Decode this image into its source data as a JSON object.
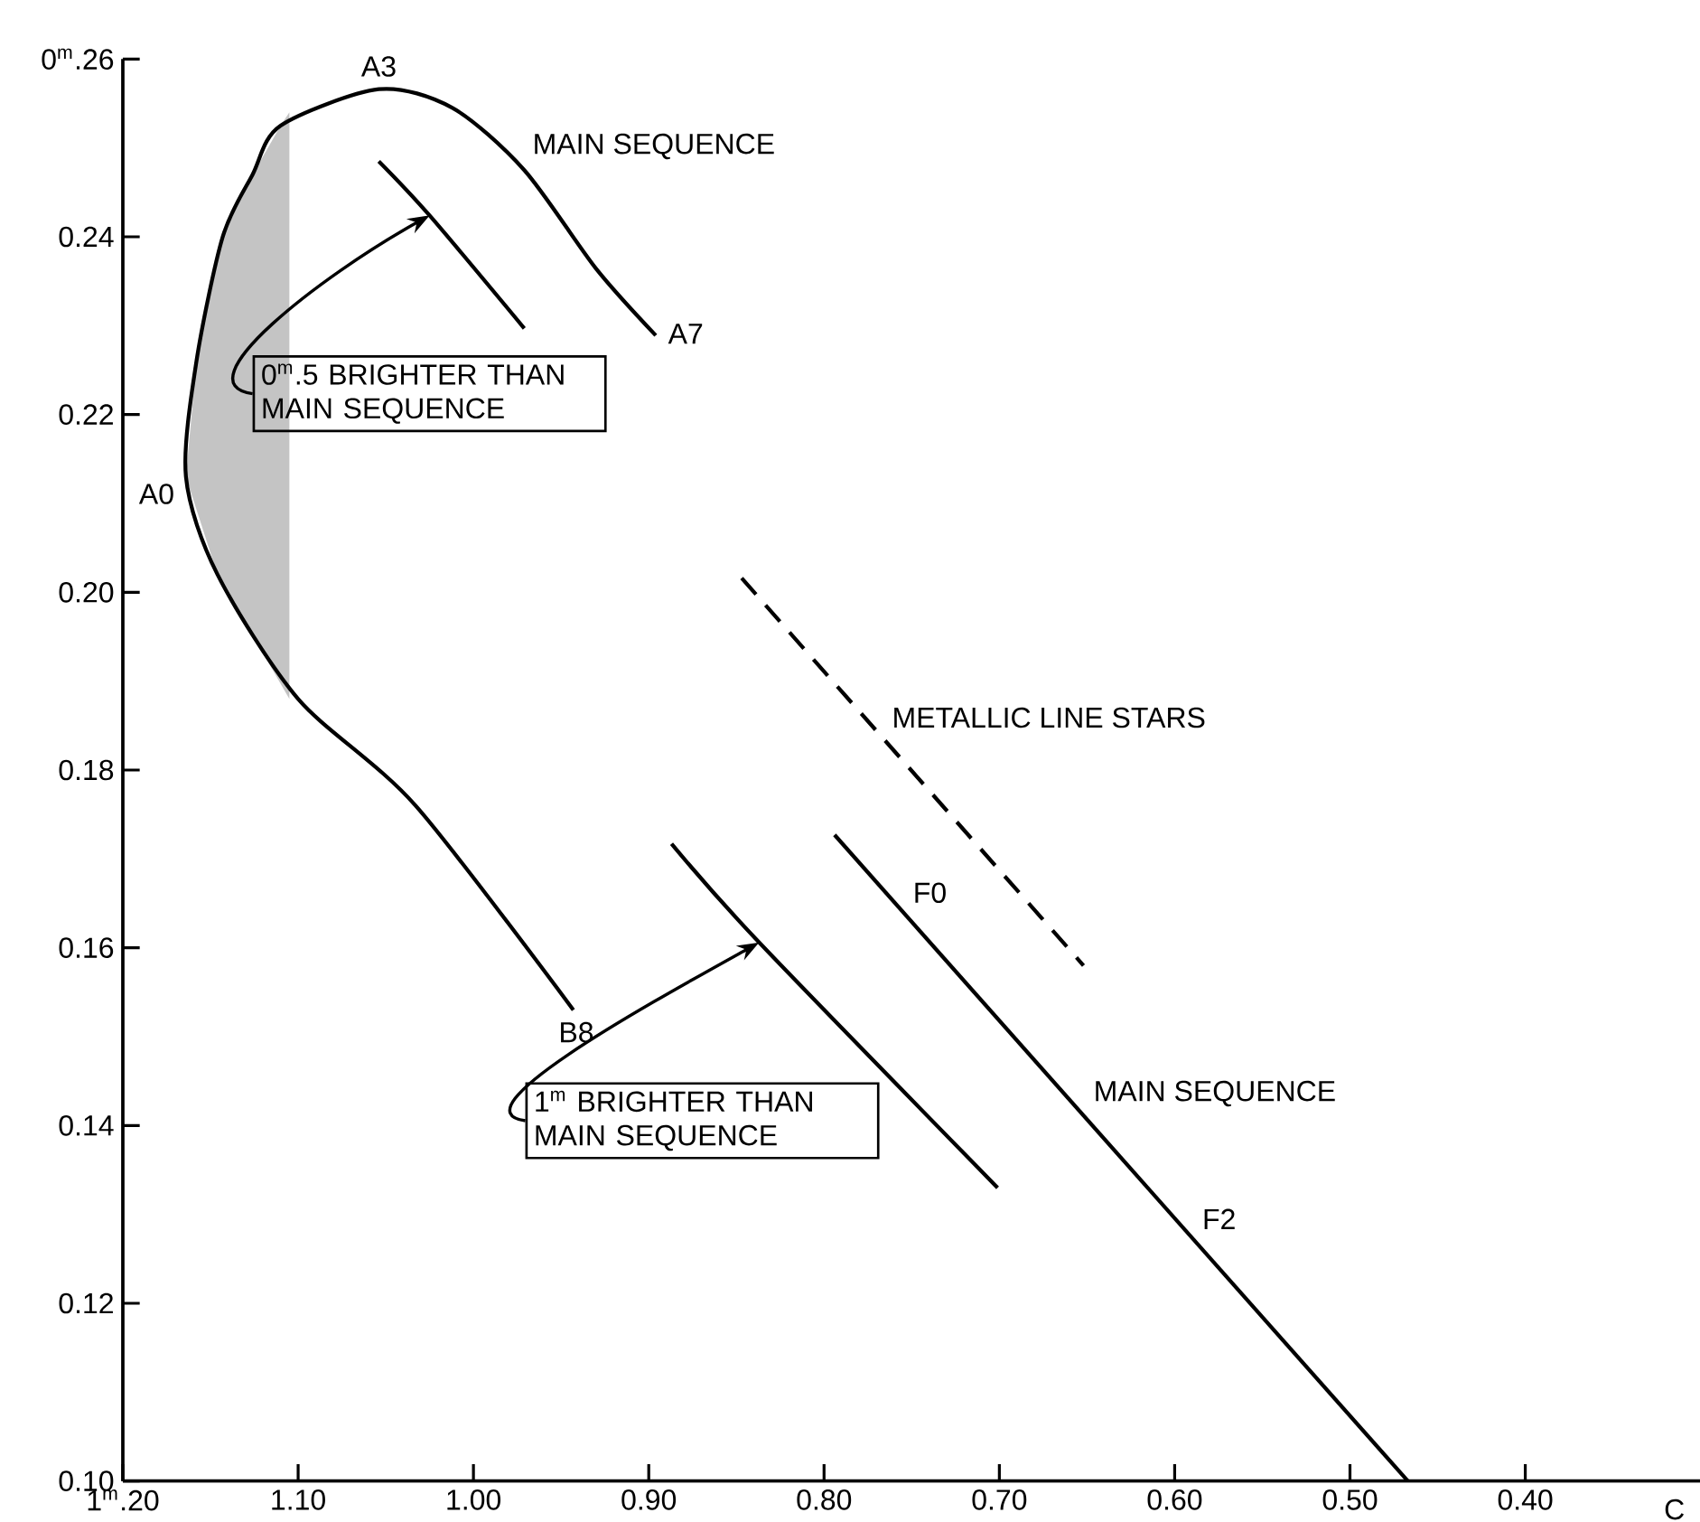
{
  "chart_data": {
    "type": "line",
    "xlabel": "C",
    "xlim": [
      1.2,
      0.3
    ],
    "ylim": [
      0.1,
      0.26
    ],
    "xticks": [
      {
        "value": 1.2,
        "label": "1$^{m}$.20"
      },
      {
        "value": 1.1,
        "label": "1.10"
      },
      {
        "value": 1.0,
        "label": "1.00"
      },
      {
        "value": 0.9,
        "label": "0.90"
      },
      {
        "value": 0.8,
        "label": "0.80"
      },
      {
        "value": 0.7,
        "label": "0.70"
      },
      {
        "value": 0.6,
        "label": "0.60"
      },
      {
        "value": 0.5,
        "label": "0.50"
      },
      {
        "value": 0.4,
        "label": "0.40"
      }
    ],
    "yticks": [
      {
        "value": 0.1,
        "label": "0.10"
      },
      {
        "value": 0.12,
        "label": "0.12"
      },
      {
        "value": 0.14,
        "label": "0.14"
      },
      {
        "value": 0.16,
        "label": "0.16"
      },
      {
        "value": 0.18,
        "label": "0.18"
      },
      {
        "value": 0.2,
        "label": "0.20"
      },
      {
        "value": 0.22,
        "label": "0.22"
      },
      {
        "value": 0.24,
        "label": "0.24"
      },
      {
        "value": 0.26,
        "label": "0$^{m}$.26"
      }
    ],
    "series": [
      {
        "type": "area",
        "color": "#c4c4c4",
        "x": [
          1.105,
          1.146,
          1.164,
          1.158,
          1.143,
          1.126,
          1.11,
          1.105
        ],
        "values": [
          0.188,
          0.202,
          0.213,
          0.226,
          0.24,
          0.247,
          0.2525,
          0.254
        ]
      },
      {
        "color": "#000000",
        "x": [
          0.943,
          1.033,
          1.1,
          1.146,
          1.164,
          1.158,
          1.143,
          1.126,
          1.11,
          1.054,
          1.012,
          0.971,
          0.93,
          0.896
        ],
        "values": [
          0.153,
          0.176,
          0.188,
          0.202,
          0.213,
          0.226,
          0.24,
          0.247,
          0.2525,
          0.2566,
          0.2545,
          0.2475,
          0.2364,
          0.2289
        ]
      },
      {
        "color": "#000000",
        "x": [
          1.054,
          1.025,
          0.971
        ],
        "values": [
          0.2485,
          0.2424,
          0.2297
        ]
      },
      {
        "color": "#000000",
        "x": [
          0.887,
          0.837,
          0.701
        ],
        "values": [
          0.1717,
          0.1606,
          0.133
        ]
      },
      {
        "color": "#000000",
        "x": [
          0.794,
          0.467
        ],
        "values": [
          0.1727,
          0.1
        ]
      },
      {
        "color": "#000000",
        "line_style": "dashed",
        "x": [
          0.847,
          0.652
        ],
        "values": [
          0.2016,
          0.158
        ]
      }
    ],
    "annotations": [
      {
        "text": "A3",
        "x": 1.054,
        "y": 0.2566
      },
      {
        "text": "A7",
        "x": 0.896,
        "y": 0.2289
      },
      {
        "text": "A0",
        "x": 1.164,
        "y": 0.213
      },
      {
        "text": "B8",
        "x": 0.943,
        "y": 0.153
      },
      {
        "text": "F0",
        "x": 0.755,
        "y": 0.164
      },
      {
        "text": "F2",
        "x": 0.59,
        "y": 0.1273
      },
      {
        "text": "MAIN SEQUENCE",
        "x": 0.971,
        "y": 0.2475
      },
      {
        "text": "MAIN SEQUENCE",
        "x": 0.652,
        "y": 0.1411
      },
      {
        "text": "METALLIC LINE STARS",
        "x": 0.767,
        "y": 0.1837
      },
      {
        "text": "0$^{m}$.5 BRIGHTER THAN MAIN SEQUENCE",
        "x": 1.025,
        "y": 0.2424
      },
      {
        "text": "1$^{m}$ BRIGHTER THAN MAIN SEQUENCE",
        "x": 0.837,
        "y": 0.1606
      }
    ]
  }
}
